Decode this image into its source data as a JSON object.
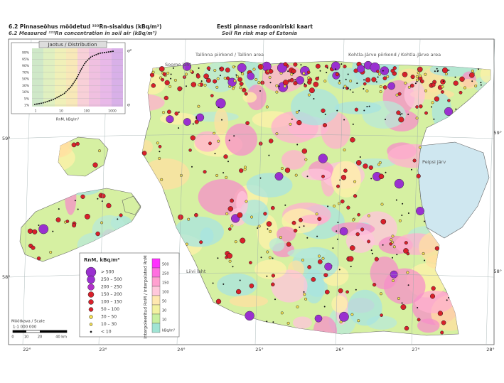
{
  "header": {
    "title_et": "6.2 Pinnaseõhus mõõdetud ²²²Rn-sisaldus (kBq/m³)",
    "title_en": "6.2 Measured ²²²Rn concentration in soil air (kBq/m³)",
    "map_title_et": "Eesti pinnase radooniriski kaart",
    "map_title_en": "Soil Rn risk map of Estonia"
  },
  "inset": {
    "title": "Jaotus / Distribution",
    "y_labels": [
      "99%",
      "95%",
      "90%",
      "70%",
      "50%",
      "30%",
      "10%",
      "5%",
      "1%"
    ],
    "x_labels": [
      "1",
      "10",
      "100",
      "1000"
    ],
    "x_title": "RnM, kBq/m³",
    "sigma_top": "σ²",
    "sigma_bottom": "σ"
  },
  "places": [
    "Soome laht",
    "Tallinna piirkond / Tallinn area",
    "Kohtla-Järve piirkond / Kohtla-Järve area",
    "Peipsi järv",
    "Liivi laht"
  ],
  "latitudes": [
    "59°",
    "58°"
  ],
  "longitudes": [
    "22°",
    "23°",
    "24°",
    "25°",
    "26°",
    "27°",
    "28°"
  ],
  "legend": {
    "title": "RnM, kBq/m³",
    "classes": [
      "> 500",
      "250 – 500",
      "200 – 250",
      "150 – 200",
      "100 – 150",
      "50 – 100",
      "30 – 50",
      "10 – 30",
      "< 10"
    ]
  },
  "color_scale": {
    "title": "Interpoleeritud RnM / Interpolated RnM",
    "labels": [
      "500",
      "250",
      "150",
      "100",
      "50",
      "30",
      "10"
    ],
    "unit": "kBq/m³"
  },
  "scale_bar": {
    "title": "Mõõtkava / Scale",
    "ratio": "1:1 000 000",
    "labels": [
      "0",
      "10",
      "20",
      "40 km"
    ]
  }
}
